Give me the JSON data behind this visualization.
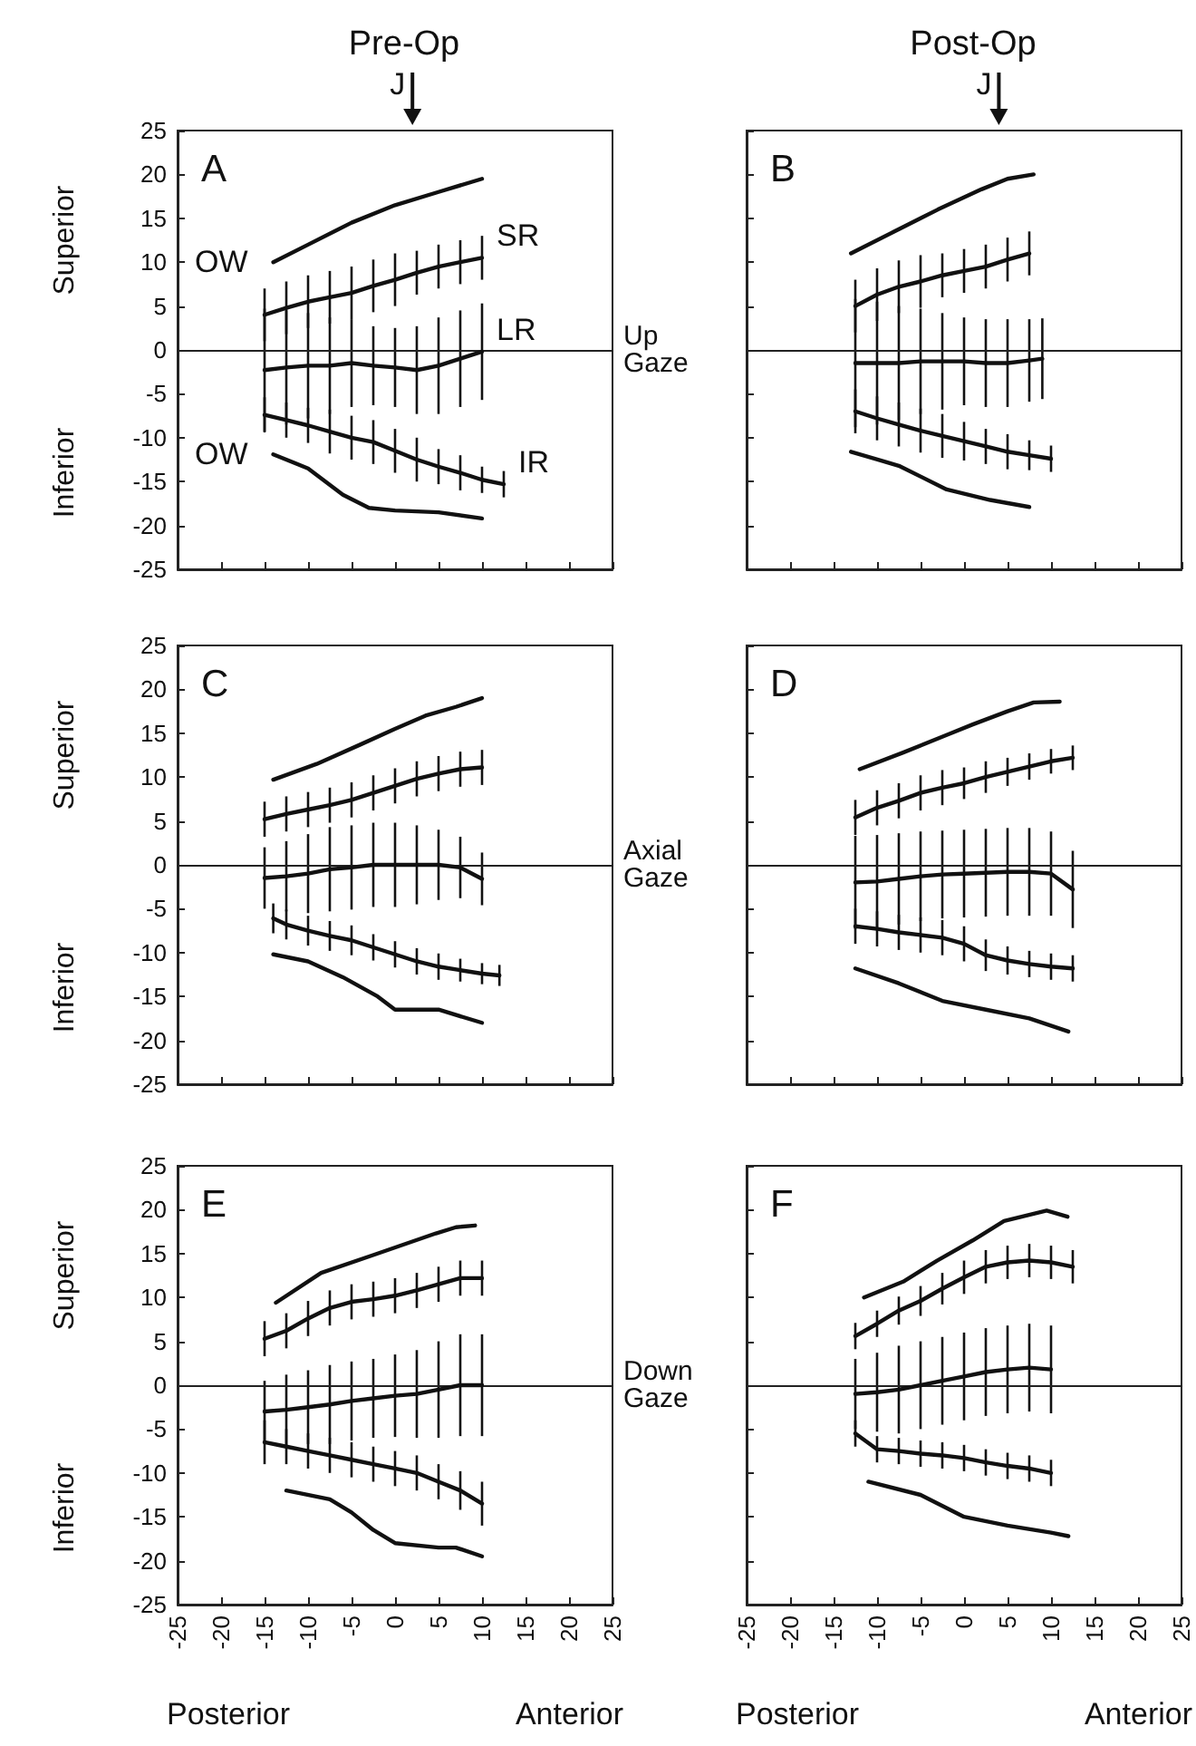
{
  "chart_data": [
    {
      "type": "line",
      "title": "A",
      "subtitle": "Pre-Op",
      "ylabel": "Superior",
      "annotations": [
        "Inferior",
        "J"
      ],
      "xlim": [
        -25,
        25
      ],
      "xticks": [
        -25,
        -20,
        -15,
        -10,
        -5,
        0,
        5,
        10,
        15,
        20,
        25
      ],
      "ylim": [
        -25,
        25
      ],
      "yticks": [
        -25,
        -20,
        -15,
        -10,
        -5,
        0,
        5,
        10,
        15,
        20,
        25
      ],
      "tick_labels": "y",
      "ref_lines": [
        {
          "axis": "y",
          "value": 0,
          "label": "Up Gaze"
        }
      ],
      "series": [
        {
          "name": "OW",
          "color": "#111111",
          "x": [
            -14,
            -10,
            -5,
            0,
            5,
            10
          ],
          "values": [
            10,
            12,
            14.5,
            16.5,
            18,
            19.5
          ]
        },
        {
          "name": "SR",
          "color": "#111111",
          "x": [
            -15,
            -12.5,
            -10,
            -7.5,
            -5,
            -2.5,
            0,
            2.5,
            5,
            7.5,
            10
          ],
          "values": [
            4,
            4.8,
            5.5,
            6,
            6.5,
            7.3,
            8,
            8.8,
            9.5,
            10,
            10.5
          ],
          "errors": [
            3,
            3,
            3,
            3,
            3,
            3,
            3,
            2.5,
            2.5,
            2.5,
            2.5
          ]
        },
        {
          "name": "LR",
          "color": "#111111",
          "x": [
            -15,
            -12.5,
            -10,
            -7.5,
            -5,
            -2.5,
            0,
            2.5,
            5,
            7.5,
            10
          ],
          "values": [
            -2.3,
            -2,
            -1.8,
            -1.8,
            -1.5,
            -1.8,
            -2,
            -2.3,
            -1.8,
            -1,
            -0.2
          ],
          "errors": [
            7,
            6.5,
            6,
            5.5,
            5,
            4.5,
            4.5,
            5,
            5.5,
            5.5,
            5.5
          ]
        },
        {
          "name": "IR",
          "color": "#111111",
          "x": [
            -15,
            -12.5,
            -10,
            -7.5,
            -5,
            -2.5,
            0,
            2.5,
            5,
            7.5,
            10,
            12.5
          ],
          "values": [
            -7.4,
            -8,
            -8.6,
            -9.3,
            -10,
            -10.5,
            -11.5,
            -12.5,
            -13.3,
            -14,
            -14.8,
            -15.3
          ],
          "errors": [
            2,
            2,
            2,
            2.5,
            2.5,
            2.5,
            2.5,
            2.5,
            2,
            2,
            1.5,
            1.5
          ]
        },
        {
          "name": "OW",
          "color": "#111111",
          "x": [
            -14,
            -10,
            -6,
            -3,
            0,
            5,
            10
          ],
          "values": [
            -11.9,
            -13.5,
            -16.5,
            -18,
            -18.3,
            -18.5,
            -19.2
          ]
        }
      ]
    },
    {
      "type": "line",
      "title": "B",
      "subtitle": "Post-Op",
      "annotations": [
        "J"
      ],
      "xlim": [
        -25,
        25
      ],
      "xticks": [
        -25,
        -20,
        -15,
        -10,
        -5,
        0,
        5,
        10,
        15,
        20,
        25
      ],
      "ylim": [
        -25,
        25
      ],
      "yticks": [
        -25,
        -20,
        -15,
        -10,
        -5,
        0,
        5,
        10,
        15,
        20,
        25
      ],
      "tick_labels": false,
      "ref_lines": [
        {
          "axis": "y",
          "value": 0
        }
      ],
      "series": [
        {
          "color": "#111111",
          "x": [
            -13,
            -8,
            -3,
            2,
            5,
            8
          ],
          "values": [
            11,
            13.5,
            16,
            18.3,
            19.5,
            20
          ]
        },
        {
          "color": "#111111",
          "x": [
            -12.5,
            -10,
            -7.5,
            -5,
            -2.5,
            0,
            2.5,
            5,
            7.5
          ],
          "values": [
            5,
            6.3,
            7.2,
            7.8,
            8.5,
            9,
            9.5,
            10.3,
            11
          ],
          "errors": [
            3,
            3,
            3,
            3,
            2.5,
            2.5,
            2.5,
            2.5,
            2.5
          ]
        },
        {
          "color": "#111111",
          "x": [
            -12.5,
            -10,
            -7.5,
            -5,
            -2.5,
            0,
            2.5,
            5,
            7.5,
            9
          ],
          "values": [
            -1.5,
            -1.5,
            -1.5,
            -1.3,
            -1.3,
            -1.3,
            -1.5,
            -1.5,
            -1.2,
            -1
          ],
          "errors": [
            7.3,
            7,
            6.5,
            6,
            5.5,
            5,
            5,
            5,
            4.7,
            4.6
          ]
        },
        {
          "color": "#111111",
          "x": [
            -12.5,
            -10,
            -7.5,
            -5,
            -2.5,
            0,
            2.5,
            5,
            7.5,
            10
          ],
          "values": [
            -7,
            -7.8,
            -8.5,
            -9.2,
            -9.8,
            -10.4,
            -11,
            -11.6,
            -12,
            -12.4
          ],
          "errors": [
            2.5,
            2.5,
            2.5,
            2.5,
            2.5,
            2.2,
            2,
            2,
            1.7,
            1.5
          ]
        },
        {
          "color": "#111111",
          "x": [
            -13,
            -7.5,
            -2,
            3,
            7.5
          ],
          "values": [
            -11.6,
            -13.2,
            -15.9,
            -17.1,
            -17.9
          ]
        }
      ]
    },
    {
      "type": "line",
      "title": "C",
      "ylabel": "Superior",
      "annotations": [
        "Inferior"
      ],
      "xlim": [
        -25,
        25
      ],
      "xticks": [
        -25,
        -20,
        -15,
        -10,
        -5,
        0,
        5,
        10,
        15,
        20,
        25
      ],
      "ylim": [
        -25,
        25
      ],
      "yticks": [
        -25,
        -20,
        -15,
        -10,
        -5,
        0,
        5,
        10,
        15,
        20,
        25
      ],
      "tick_labels": "y",
      "ref_lines": [
        {
          "axis": "y",
          "value": 0,
          "label": "Axial Gaze"
        }
      ],
      "series": [
        {
          "color": "#111111",
          "x": [
            -14,
            -9,
            -4,
            0,
            3.5,
            7,
            10
          ],
          "values": [
            9.7,
            11.5,
            13.7,
            15.5,
            17,
            18,
            19
          ]
        },
        {
          "color": "#111111",
          "x": [
            -15,
            -12.5,
            -10,
            -7.5,
            -5,
            -2.5,
            0,
            2.5,
            5,
            7.5,
            10
          ],
          "values": [
            5.2,
            5.8,
            6.3,
            6.8,
            7.4,
            8.2,
            9,
            9.8,
            10.4,
            10.9,
            11.1
          ],
          "errors": [
            2,
            2,
            2,
            2,
            2,
            2,
            2,
            2,
            2,
            2,
            2
          ]
        },
        {
          "color": "#111111",
          "x": [
            -15,
            -12.5,
            -10,
            -7.5,
            -5,
            -2.5,
            0,
            2.5,
            5,
            7.5,
            10
          ],
          "values": [
            -1.5,
            -1.3,
            -1,
            -0.5,
            -0.3,
            0,
            0,
            0,
            0,
            -0.3,
            -1.6
          ],
          "errors": [
            3.5,
            4,
            4.5,
            4.8,
            4.8,
            4.8,
            4.8,
            4.5,
            4,
            3.5,
            3
          ]
        },
        {
          "color": "#111111",
          "x": [
            -14,
            -12.5,
            -10,
            -7.5,
            -5,
            -2.5,
            0,
            2.5,
            5,
            7.5,
            10,
            12
          ],
          "values": [
            -6.1,
            -6.8,
            -7.5,
            -8.1,
            -8.6,
            -9.4,
            -10.2,
            -11,
            -11.6,
            -12,
            -12.4,
            -12.6
          ],
          "errors": [
            1.7,
            1.7,
            1.7,
            1.7,
            1.7,
            1.5,
            1.5,
            1.5,
            1.5,
            1.3,
            1.2,
            1.2
          ]
        },
        {
          "color": "#111111",
          "x": [
            -14,
            -10,
            -6,
            -2,
            0,
            5,
            10
          ],
          "values": [
            -10.2,
            -11,
            -12.8,
            -15,
            -16.5,
            -16.5,
            -18
          ]
        }
      ]
    },
    {
      "type": "line",
      "title": "D",
      "xlim": [
        -25,
        25
      ],
      "xticks": [
        -25,
        -20,
        -15,
        -10,
        -5,
        0,
        5,
        10,
        15,
        20,
        25
      ],
      "ylim": [
        -25,
        25
      ],
      "yticks": [
        -25,
        -20,
        -15,
        -10,
        -5,
        0,
        5,
        10,
        15,
        20,
        25
      ],
      "tick_labels": false,
      "ref_lines": [
        {
          "axis": "y",
          "value": 0
        }
      ],
      "series": [
        {
          "color": "#111111",
          "x": [
            -12,
            -7,
            -2,
            1,
            5,
            8,
            11
          ],
          "values": [
            10.9,
            12.8,
            14.8,
            16,
            17.5,
            18.5,
            18.6
          ]
        },
        {
          "color": "#111111",
          "x": [
            -12.5,
            -10,
            -7.5,
            -5,
            -2.5,
            0,
            2.5,
            5,
            7.5,
            10,
            12.5
          ],
          "values": [
            5.4,
            6.5,
            7.3,
            8.2,
            8.8,
            9.3,
            10,
            10.6,
            11.2,
            11.8,
            12.2
          ],
          "errors": [
            2,
            2,
            2,
            2,
            2,
            1.8,
            1.8,
            1.6,
            1.5,
            1.4,
            1.4
          ]
        },
        {
          "color": "#111111",
          "x": [
            -12.5,
            -10,
            -7.5,
            -5,
            -2.5,
            0,
            2.5,
            5,
            7.5,
            10,
            12.5
          ],
          "values": [
            -2,
            -1.9,
            -1.6,
            -1.3,
            -1.1,
            -1,
            -0.9,
            -0.8,
            -0.8,
            -1,
            -2.8
          ],
          "errors": [
            5.3,
            5.3,
            5.2,
            5.1,
            5,
            5,
            5,
            5,
            5,
            4.8,
            4.4
          ]
        },
        {
          "color": "#111111",
          "x": [
            -12.5,
            -10,
            -7.5,
            -5,
            -2.5,
            0,
            2.5,
            5,
            7.5,
            10,
            12.5
          ],
          "values": [
            -7,
            -7.3,
            -7.7,
            -8,
            -8.3,
            -9,
            -10.3,
            -10.9,
            -11.3,
            -11.6,
            -11.8
          ],
          "errors": [
            2,
            2,
            2,
            2,
            2,
            2,
            1.8,
            1.6,
            1.5,
            1.5,
            1.5
          ]
        },
        {
          "color": "#111111",
          "x": [
            -12.5,
            -7.5,
            -2.5,
            2.5,
            7.5,
            12
          ],
          "values": [
            -11.8,
            -13.5,
            -15.5,
            -16.5,
            -17.5,
            -19
          ]
        }
      ]
    },
    {
      "type": "line",
      "title": "E",
      "ylabel": "Superior",
      "annotations": [
        "Inferior",
        "Posterior",
        "Anterior"
      ],
      "xlim": [
        -25,
        25
      ],
      "xticks": [
        -25,
        -20,
        -15,
        -10,
        -5,
        0,
        5,
        10,
        15,
        20,
        25
      ],
      "ylim": [
        -25,
        25
      ],
      "yticks": [
        -25,
        -20,
        -15,
        -10,
        -5,
        0,
        5,
        10,
        15,
        20,
        25
      ],
      "ref_lines": [
        {
          "axis": "y",
          "value": 0,
          "label": "Down Gaze"
        }
      ],
      "series": [
        {
          "color": "#111111",
          "x": [
            -13.7,
            -8.5,
            -2.3,
            4.7,
            7,
            9.2
          ],
          "values": [
            9.4,
            12.8,
            14.9,
            17.3,
            18,
            18.2
          ]
        },
        {
          "color": "#111111",
          "x": [
            -15,
            -12.5,
            -10,
            -7.5,
            -5,
            -2.5,
            0,
            2.5,
            5,
            7.5,
            10
          ],
          "values": [
            5.3,
            6.2,
            7.6,
            8.8,
            9.5,
            9.8,
            10.2,
            10.8,
            11.5,
            12.2,
            12.2
          ],
          "errors": [
            2,
            2,
            2,
            2,
            2,
            2,
            2,
            2,
            2,
            2,
            2
          ]
        },
        {
          "color": "#111111",
          "x": [
            -15,
            -12.5,
            -10,
            -7.5,
            -5,
            -2.5,
            0,
            2.5,
            5,
            7.5,
            10
          ],
          "values": [
            -3,
            -2.8,
            -2.5,
            -2.2,
            -1.8,
            -1.5,
            -1.2,
            -1,
            -0.5,
            0,
            0
          ],
          "errors": [
            3.5,
            4,
            4.2,
            4.5,
            4.5,
            4.5,
            4.7,
            5,
            5.5,
            5.8,
            5.8
          ]
        },
        {
          "color": "#111111",
          "x": [
            -15,
            -12.5,
            -10,
            -7.5,
            -5,
            -2.5,
            0,
            2.5,
            5,
            7.5,
            10
          ],
          "values": [
            -6.5,
            -7,
            -7.5,
            -8,
            -8.5,
            -9,
            -9.5,
            -10,
            -11,
            -12,
            -13.5
          ],
          "errors": [
            2.5,
            2,
            2,
            2,
            2,
            2,
            2,
            2,
            2,
            2.2,
            2.5
          ]
        },
        {
          "color": "#111111",
          "x": [
            -12.5,
            -7.5,
            -5,
            -2.5,
            0,
            5,
            7,
            10
          ],
          "values": [
            -12,
            -13,
            -14.5,
            -16.5,
            -18,
            -18.5,
            -18.5,
            -19.5
          ]
        }
      ]
    },
    {
      "type": "line",
      "title": "F",
      "annotations": [
        "Posterior",
        "Anterior"
      ],
      "xlim": [
        -25,
        25
      ],
      "xticks": [
        -25,
        -20,
        -15,
        -10,
        -5,
        0,
        5,
        10,
        15,
        20,
        25
      ],
      "ylim": [
        -25,
        25
      ],
      "yticks": [
        -25,
        -20,
        -15,
        -10,
        -5,
        0,
        5,
        10,
        15,
        20,
        25
      ],
      "tick_labels": "x",
      "ref_lines": [
        {
          "axis": "y",
          "value": 0
        }
      ],
      "series": [
        {
          "color": "#111111",
          "x": [
            -11.5,
            -7,
            -3.1,
            1,
            4.6,
            9.5,
            11.9
          ],
          "values": [
            10,
            11.8,
            14.2,
            16.5,
            18.7,
            19.9,
            19.2
          ]
        },
        {
          "color": "#111111",
          "x": [
            -12.5,
            -10,
            -7.5,
            -5,
            -2.5,
            0,
            2.5,
            5,
            7.5,
            10,
            12.5
          ],
          "values": [
            5.6,
            7,
            8.5,
            9.6,
            11,
            12.3,
            13.5,
            14,
            14.2,
            14,
            13.5
          ],
          "errors": [
            1.5,
            1.5,
            1.6,
            1.7,
            1.8,
            1.9,
            1.9,
            1.9,
            1.9,
            1.9,
            1.9
          ]
        },
        {
          "color": "#111111",
          "x": [
            -12.5,
            -10,
            -7.5,
            -5,
            -2.5,
            0,
            2.5,
            5,
            7.5,
            10
          ],
          "values": [
            -1,
            -0.8,
            -0.5,
            0,
            0.5,
            1,
            1.5,
            1.8,
            2,
            1.8
          ],
          "errors": [
            4,
            4.5,
            5,
            5,
            5,
            5,
            5,
            5,
            5,
            5
          ]
        },
        {
          "color": "#111111",
          "x": [
            -12.5,
            -10,
            -7.5,
            -5,
            -2.5,
            0,
            2.5,
            5,
            7.5,
            10
          ],
          "values": [
            -5.5,
            -7.3,
            -7.5,
            -7.8,
            -8,
            -8.3,
            -8.8,
            -9.2,
            -9.5,
            -10
          ],
          "errors": [
            1.5,
            1.5,
            1.5,
            1.5,
            1.5,
            1.5,
            1.5,
            1.5,
            1.5,
            1.5
          ]
        },
        {
          "color": "#111111",
          "x": [
            -11,
            -5,
            0,
            5,
            10,
            12
          ],
          "values": [
            -11,
            -12.5,
            -15,
            -16,
            -16.8,
            -17.2
          ]
        }
      ]
    }
  ]
}
